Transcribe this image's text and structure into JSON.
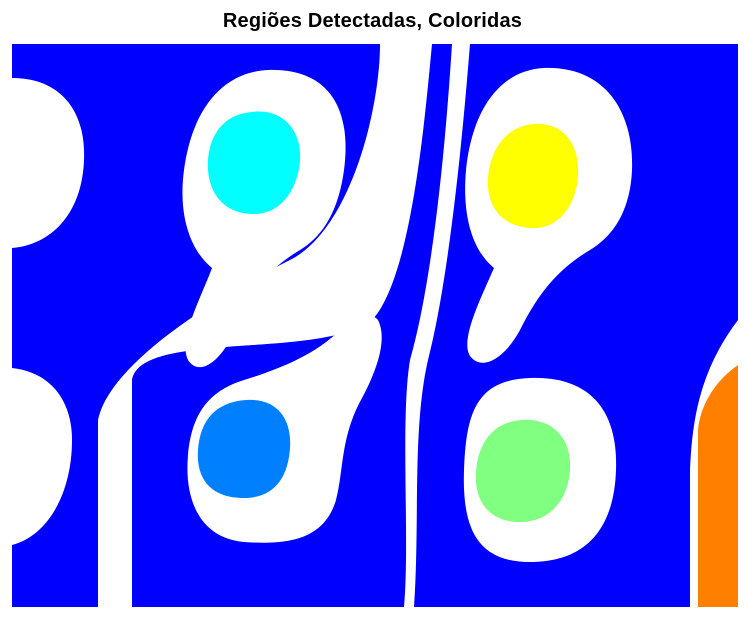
{
  "figure": {
    "title": "Regiões Detectadas, Coloridas"
  },
  "colors": {
    "background": "#ffffff",
    "blue_region": "#0000ff",
    "cyan_region": "#00ffff",
    "yellow_region": "#ffff00",
    "azure_region": "#0080ff",
    "green_region": "#80ff80",
    "orange_region": "#ff8000"
  },
  "regions": [
    {
      "name": "blue-connected-region",
      "color": "blue_region"
    },
    {
      "name": "cyan-blob",
      "color": "cyan_region"
    },
    {
      "name": "yellow-blob",
      "color": "yellow_region"
    },
    {
      "name": "azure-blob",
      "color": "azure_region"
    },
    {
      "name": "green-blob",
      "color": "green_region"
    },
    {
      "name": "orange-edge-region",
      "color": "orange_region"
    }
  ]
}
